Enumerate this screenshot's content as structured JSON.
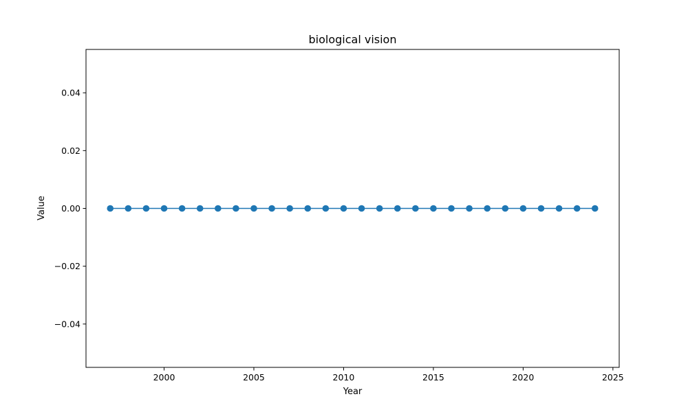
{
  "chart_data": {
    "type": "line",
    "title": "biological vision",
    "xlabel": "Year",
    "ylabel": "Value",
    "xlim": [
      1995.65,
      2025.35
    ],
    "ylim": [
      -0.055,
      0.055
    ],
    "x_ticks": [
      2000,
      2005,
      2010,
      2015,
      2020,
      2025
    ],
    "y_ticks": [
      -0.04,
      -0.02,
      0.0,
      0.02,
      0.04
    ],
    "x_tick_labels": [
      "2000",
      "2005",
      "2010",
      "2015",
      "2020",
      "2025"
    ],
    "y_tick_labels": [
      "−0.04",
      "−0.02",
      "0.00",
      "0.02",
      "0.04"
    ],
    "grid": false,
    "series": [
      {
        "color": "#1f77b4",
        "marker": "circle",
        "x": [
          1997,
          1998,
          1999,
          2000,
          2001,
          2002,
          2003,
          2004,
          2005,
          2006,
          2007,
          2008,
          2009,
          2010,
          2011,
          2012,
          2013,
          2014,
          2015,
          2016,
          2017,
          2018,
          2019,
          2020,
          2021,
          2022,
          2023,
          2024
        ],
        "y": [
          0,
          0,
          0,
          0,
          0,
          0,
          0,
          0,
          0,
          0,
          0,
          0,
          0,
          0,
          0,
          0,
          0,
          0,
          0,
          0,
          0,
          0,
          0,
          0,
          0,
          0,
          0,
          0
        ]
      }
    ]
  }
}
